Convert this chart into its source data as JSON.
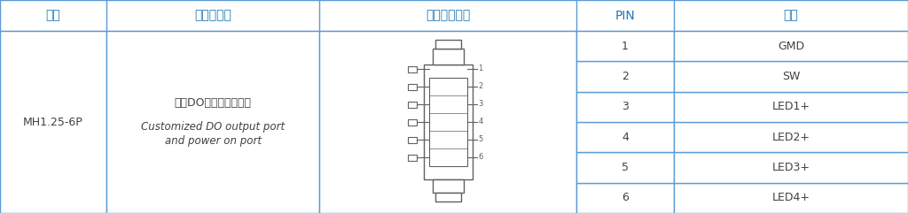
{
  "title_row": [
    "型号",
    "接插件功能",
    "接插件示意图",
    "PIN",
    "含义"
  ],
  "model": "MH1.25-6P",
  "function_cn": "定制DO输出口及开机口",
  "function_en1": "Customized DO output port",
  "function_en2": "and power on port",
  "pins": [
    1,
    2,
    3,
    4,
    5,
    6
  ],
  "meanings": [
    "GMD",
    "SW",
    "LED1+",
    "LED2+",
    "LED3+",
    "LED4+"
  ],
  "border_color": "#5B9BD5",
  "header_bg": "#FFFFFF",
  "cell_bg": "#FFFFFF",
  "text_color_cn": "#1F77B4",
  "text_color_black": "#404040",
  "line_color": "#A0A0A0",
  "connector_color": "#606060",
  "fig_width": 10.24,
  "fig_height": 2.41
}
